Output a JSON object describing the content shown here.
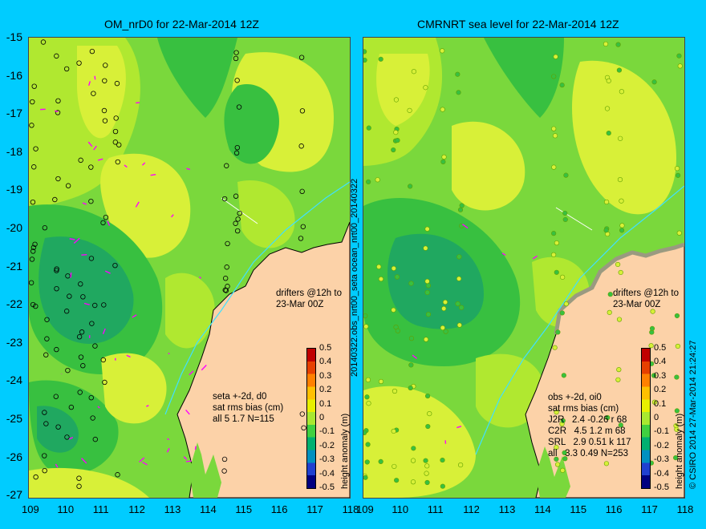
{
  "left_title": "OM_nrD0 for 22-Mar-2014 12Z",
  "right_title": "CMRNRT sea level  for 22-Mar-2014 12Z",
  "y_labels": [
    "-15",
    "-16",
    "-17",
    "-18",
    "-19",
    "-20",
    "-21",
    "-22",
    "-23",
    "-24",
    "-25",
    "-26",
    "-27"
  ],
  "x_labels": [
    "109",
    "110",
    "111",
    "112",
    "113",
    "114",
    "115",
    "116",
    "117",
    "118"
  ],
  "middle_label": "20140322.obs_nrt00_seta  ocean_nrt00_20140322",
  "drifters_left": "drifters @12h to\n23-Mar 00Z",
  "drifters_right": "drifters @12h to\n23-Mar 00Z",
  "left_stats": "seta +-2d, d0\nsat rms bias (cm)\nall 5 1.7 N=115",
  "right_stats": "obs +-2d, oi0\nsat rms bias (cm)\nJ2R   2.4 -0.26 r 68\nC2R   4.5 1.2 m 68\nSRL   2.9 0.51 k 117\nall   3.3 0.49 N=253",
  "colorbar": {
    "label": "height anomaly (m)",
    "ticks": [
      "0.5",
      "0.4",
      "0.3",
      "0.2",
      "0.1",
      "0",
      "-0.1",
      "-0.2",
      "-0.3",
      "-0.4",
      "-0.5"
    ],
    "colors": [
      "#c00000",
      "#e64000",
      "#ff8000",
      "#ffc000",
      "#e8f000",
      "#a8e830",
      "#40d040",
      "#00b070",
      "#0090c0",
      "#2040d0",
      "#000080"
    ]
  },
  "copyright": "© CSIRO 2014   27-Mar-2014 21:24:27",
  "colors": {
    "background": "#00ccff",
    "land": "#fcd2a8",
    "ocean_base": "#7ad83c",
    "high": "#d8f038",
    "mid": "#b0e830",
    "low": "#38c040",
    "verylow": "#20a860",
    "drifter": "#ff00ff",
    "track": "#40e0ff"
  }
}
